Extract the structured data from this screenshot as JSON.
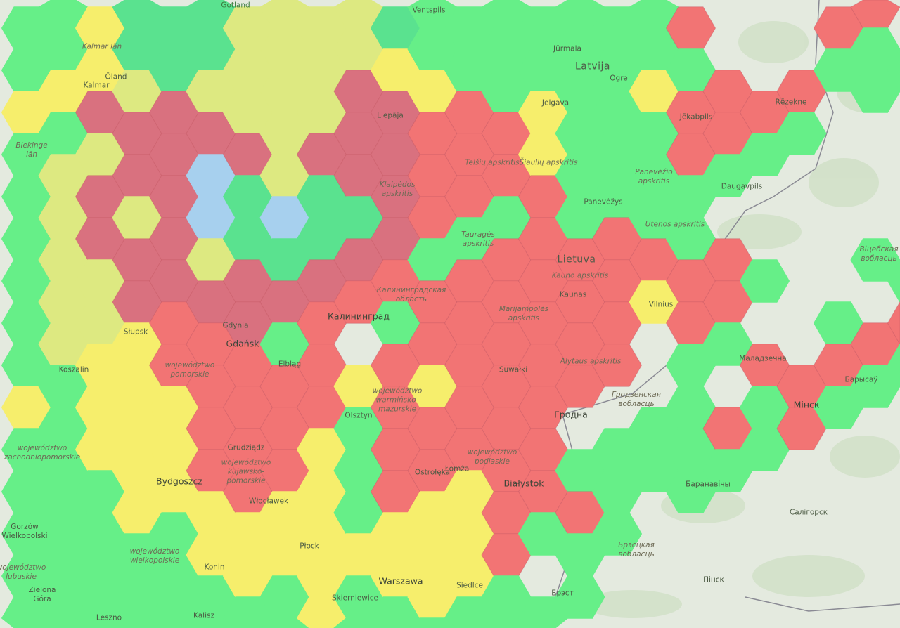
{
  "map": {
    "colors": {
      "G": "#66ef88",
      "T": "#5ae28f",
      "O": "#dde981",
      "Y": "#f6ee6c",
      "R": "#f27474",
      "M": "#d9717f",
      "B": "#a7d0ee",
      "W": "none"
    },
    "hex_columns": [
      "GGYGGGGGGYGGGGG",
      "GGYGOOOOOGGGGGGG",
      "YYMOMMOOYYYGGGG",
      "TTOMMOMMYYYYYGGG",
      "TTMMMMMRRYYYGGG",
      "TTOMBBOMRRRRYYGG",
      "OOOMTTMMRRRRYYG",
      "OOOOOBTMGRRRYYGG",
      "OOOMTTMRRRYYYYY",
      "OOMMMTMRWYGGGYGG",
      "TYMMMMRGRRRRYYG",
      "GGYRRRGRRYRRYYYG",
      "GGRRRGRRRRRYYYG",
      "GGGRRGRRRRRRRRGG",
      "GGYYRRRRRRRRGWG",
      "GGGGGGRRRRWGRGGW",
      "GGGGGRRRRWGGGWW",
      "GGYGGGRYWWGGWWWW",
      "RGRRGGRRGGGGWWW",
      "WWRRGWRRGWRGWWWW",
      "WWRGWWGWRGGWWWW",
      "WWRGWWWWWRRWWWWW",
      "RGWWWWWGRGWWWWW",
      "RGGWWWGWRGWWWWWW",
      "WGWWWWGRGWWWWWW"
    ],
    "labels": [
      "Gotland",
      "Kalmar län",
      "Öland",
      "Kalmar",
      "Blekinge\nlän",
      "Ventspils",
      "Jūrmala",
      "Latvija",
      "Ogre",
      "Liepāja",
      "Jelgava",
      "Jēkabpils",
      "Rēzekne",
      "Daugavpils",
      "Telšių apskritis",
      "Šiaulių apskritis",
      "Klaipėdos\napskritis",
      "Panevėžio\napskritis",
      "Panevėžys",
      "Utenos apskritis",
      "Tauragės\napskritis",
      "Lietuva",
      "Kauno apskritis",
      "Kaunas",
      "Marijampolės\napskritis",
      "Vilnius",
      "Alytaus apskritis",
      "Калининградская\nобласть",
      "Калининград",
      "Gdynia",
      "Gdańsk",
      "Słupsk",
      "Koszalin",
      "Elbląg",
      "województwo\npomorskie",
      "województwo\nzachodniopomorskie",
      "województwo\nwarmińsko-\nmazurskie",
      "Olsztyn",
      "Suwałki",
      "Grudziądz",
      "Bydgoszcz",
      "województwo\nkujawsko-\npomorskie",
      "Ostrołęka",
      "województwo\npodlaskie",
      "Łomża",
      "Białystok",
      "Gorzów\nWielkopolski",
      "Włocławek",
      "Płock",
      "województwo\nwielkopolskie",
      "województwo\nlubuskie",
      "Konin",
      "Zielona\nGóra",
      "Warszawa",
      "Siedlce",
      "Skierniewice",
      "Kalisz",
      "Leszno",
      "Гродна",
      "Гродзенская\nвобласць",
      "Маладзечна",
      "Барысаў",
      "Мінск",
      "Баранавічы",
      "Салігорск",
      "Брэсцкая\nвобласць",
      "Пінск",
      "Брэст",
      "Віцебская\nвобласць"
    ]
  }
}
